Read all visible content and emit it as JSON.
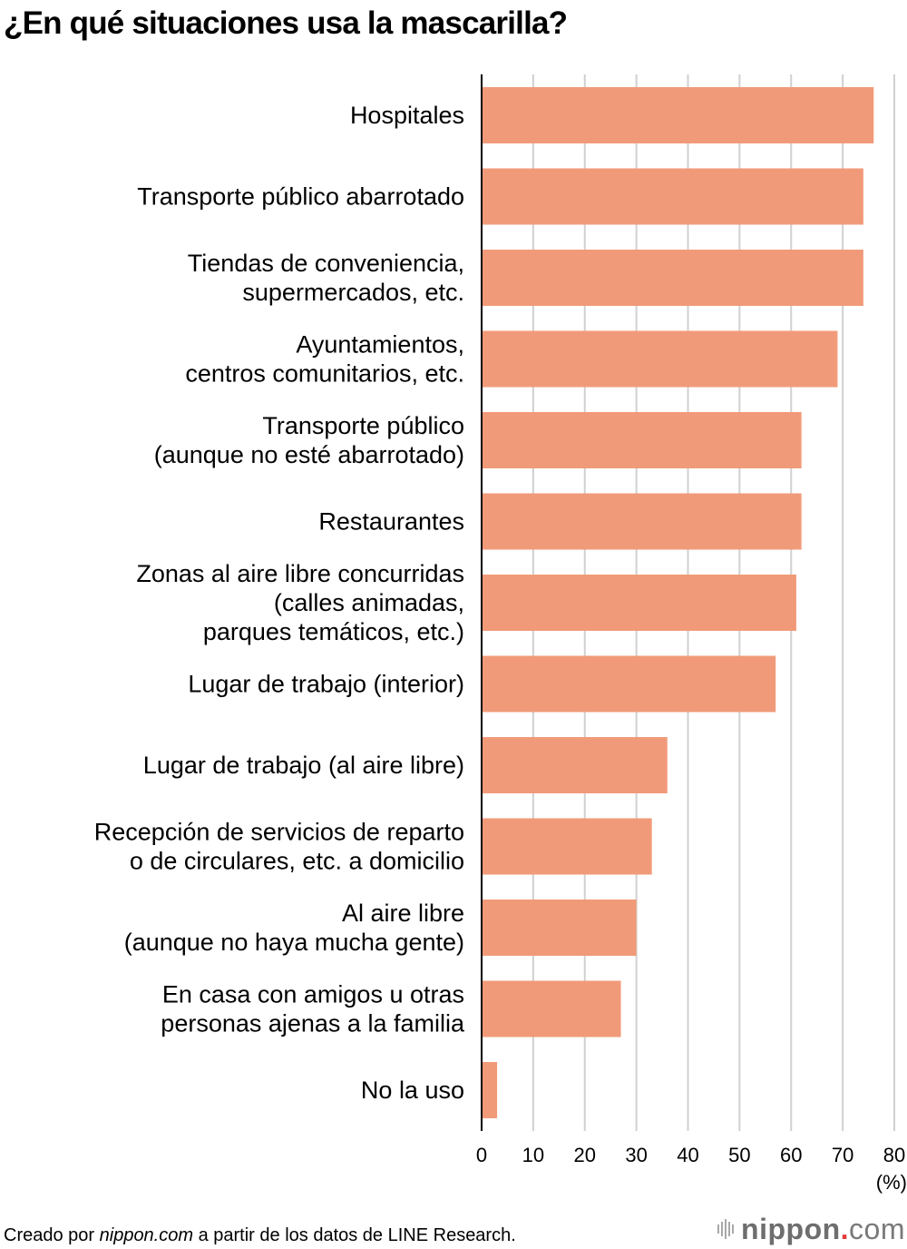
{
  "chart_data": {
    "type": "bar",
    "orientation": "horizontal",
    "title": "¿En qué situaciones usa la mascarilla?",
    "categories": [
      [
        "Hospitales"
      ],
      [
        "Transporte público abarrotado"
      ],
      [
        "Tiendas de conveniencia,",
        "supermercados, etc."
      ],
      [
        "Ayuntamientos,",
        "centros comunitarios, etc."
      ],
      [
        "Transporte público",
        "(aunque no esté abarrotado)"
      ],
      [
        "Restaurantes"
      ],
      [
        "Zonas al aire libre concurridas",
        "(calles animadas,",
        "parques temáticos, etc.)"
      ],
      [
        "Lugar de trabajo (interior)"
      ],
      [
        "Lugar de trabajo (al aire libre)"
      ],
      [
        "Recepción de servicios de reparto",
        "o de circulares, etc. a domicilio"
      ],
      [
        "Al aire libre",
        "(aunque no haya mucha gente)"
      ],
      [
        "En casa con amigos u otras",
        "personas ajenas a la familia"
      ],
      [
        "No la uso"
      ]
    ],
    "values": [
      76,
      74,
      74,
      69,
      62,
      62,
      61,
      57,
      36,
      33,
      30,
      27,
      3
    ],
    "xlabel": "(%)",
    "ylabel": "",
    "xlim": [
      0,
      80
    ],
    "xticks": [
      0,
      10,
      20,
      30,
      40,
      50,
      60,
      70,
      80
    ],
    "grid": true,
    "bar_color": "#f19a79",
    "grid_color": "#d0d0d0"
  },
  "footer": {
    "prefix": "Creado por ",
    "source_site": "nippon.com",
    "suffix": " a partir de los datos de LINE Research."
  },
  "logo": {
    "name": "nippon",
    "dot": ".",
    "tld": "com"
  }
}
